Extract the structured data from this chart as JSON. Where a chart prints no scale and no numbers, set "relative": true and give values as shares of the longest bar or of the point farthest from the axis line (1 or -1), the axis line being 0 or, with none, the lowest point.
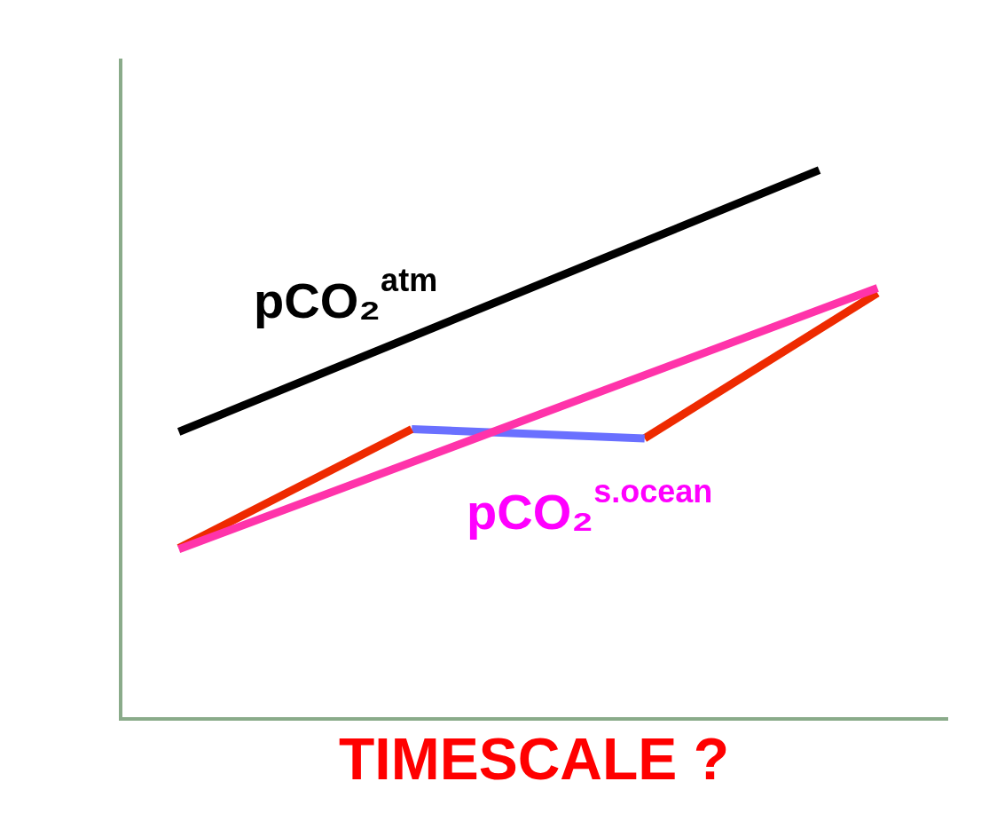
{
  "chart_data": {
    "type": "line",
    "relative": true,
    "xlabel": "TIMESCALE ?",
    "categories": [
      null,
      null,
      null,
      null,
      null,
      null,
      null,
      null,
      null,
      null,
      null,
      null,
      null
    ],
    "tick_labels": false,
    "grid": false,
    "legend": false,
    "marker": "none",
    "series": [
      {
        "name": "pCO₂$^{atm}$",
        "color": "#000000",
        "values": [
          0.523,
          null,
          null,
          null,
          null,
          null,
          null,
          null,
          null,
          null,
          null,
          1.0,
          null
        ]
      },
      {
        "name": "pCO₂$^{s.ocean}$",
        "color": "#ff33aa",
        "values": [
          0.309,
          null,
          null,
          null,
          null,
          null,
          null,
          null,
          null,
          null,
          null,
          null,
          0.785
        ]
      },
      {
        "color": "#ee2a00",
        "values": [
          0.311,
          null,
          null,
          null,
          0.528,
          null,
          null,
          null,
          null,
          null,
          null,
          null,
          null
        ]
      },
      {
        "color": "#6a70ff",
        "values": [
          null,
          null,
          null,
          null,
          0.528,
          null,
          null,
          null,
          0.511,
          null,
          null,
          null,
          null
        ]
      },
      {
        "color": "#ee2a00",
        "values": [
          null,
          null,
          null,
          null,
          null,
          null,
          null,
          null,
          0.511,
          null,
          null,
          null,
          0.776
        ]
      }
    ]
  }
}
